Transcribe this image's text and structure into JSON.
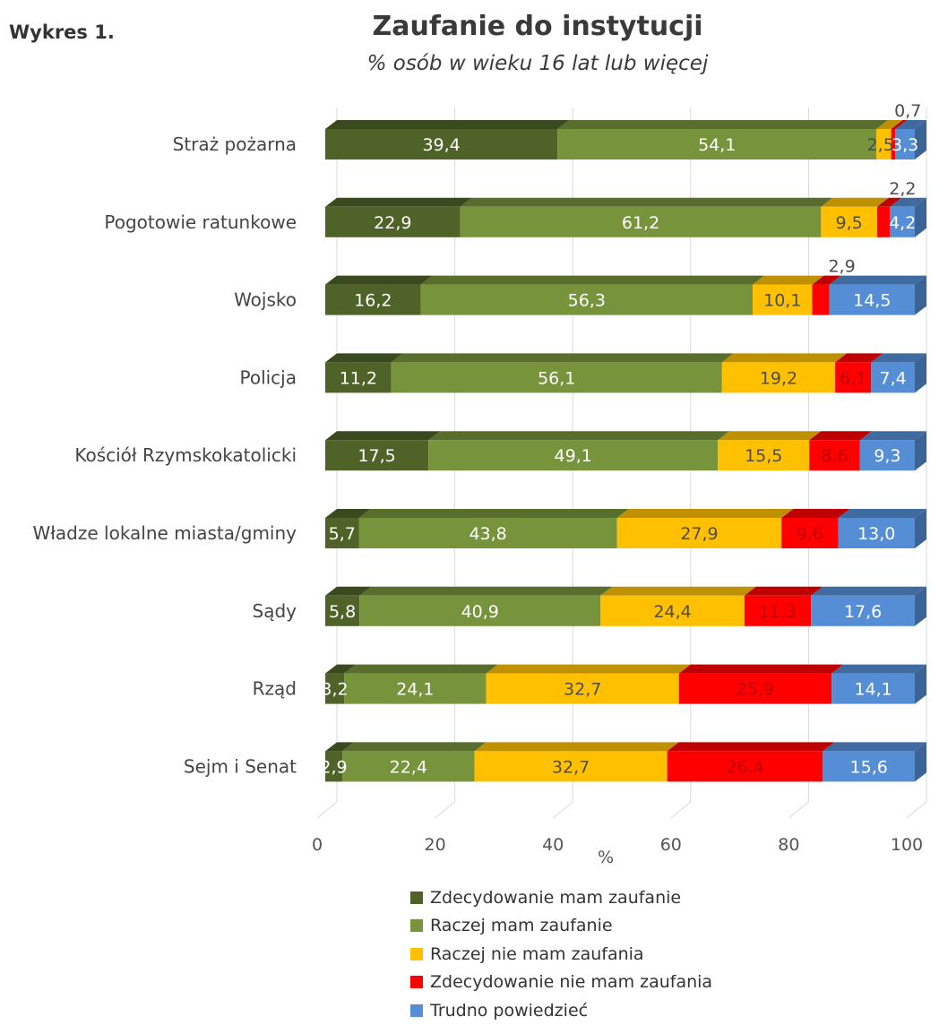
{
  "figure_label": "Wykres 1.",
  "chart_data": {
    "type": "bar",
    "orientation": "horizontal",
    "stacked": true,
    "title": "Zaufanie do instytucji",
    "subtitle": "% osób w wieku 16 lat lub więcej",
    "xlabel": "%",
    "xlim": [
      0,
      100
    ],
    "x_ticks": [
      "0",
      "20",
      "40",
      "60",
      "80",
      "100"
    ],
    "grid": true,
    "legend_position": "bottom",
    "categories": [
      "Straż pożarna",
      "Pogotowie ratunkowe",
      "Wojsko",
      "Policja",
      "Kościół Rzymskokatolicki",
      "Władze lokalne miasta/gminy",
      "Sądy",
      "Rząd",
      "Sejm i Senat"
    ],
    "series": [
      {
        "name": "Zdecydowanie mam zaufanie",
        "color": "#4f6228",
        "values": [
          39.4,
          22.9,
          16.2,
          11.2,
          17.5,
          5.7,
          5.8,
          3.2,
          2.9
        ]
      },
      {
        "name": "Raczej mam zaufanie",
        "color": "#77933c",
        "values": [
          54.1,
          61.2,
          56.3,
          56.1,
          49.1,
          43.8,
          40.9,
          24.1,
          22.4
        ]
      },
      {
        "name": "Raczej nie mam zaufania",
        "color": "#ffc000",
        "values": [
          2.5,
          9.5,
          10.1,
          19.2,
          15.5,
          27.9,
          24.4,
          32.7,
          32.7
        ]
      },
      {
        "name": "Zdecydowanie nie mam zaufania",
        "color": "#ff0000",
        "values": [
          0.7,
          2.2,
          2.9,
          6.1,
          8.6,
          9.6,
          11.3,
          25.9,
          26.4
        ]
      },
      {
        "name": "Trudno powiedzieć",
        "color": "#558ed5",
        "values": [
          3.3,
          4.2,
          14.5,
          7.4,
          9.3,
          13.0,
          17.6,
          14.1,
          15.6
        ]
      }
    ],
    "value_labels": [
      [
        "39,4",
        "54,1",
        "2,5",
        "0,7",
        "3,3"
      ],
      [
        "22,9",
        "61,2",
        "9,5",
        "2,2",
        "4,2"
      ],
      [
        "16,2",
        "56,3",
        "10,1",
        "2,9",
        "14,5"
      ],
      [
        "11,2",
        "56,1",
        "19,2",
        "6,1",
        "7,4"
      ],
      [
        "17,5",
        "49,1",
        "15,5",
        "8,6",
        "9,3"
      ],
      [
        "5,7",
        "43,8",
        "27,9",
        "9,6",
        "13,0"
      ],
      [
        "5,8",
        "40,9",
        "24,4",
        "11,3",
        "17,6"
      ],
      [
        "3,2",
        "24,1",
        "32,7",
        "25,9",
        "14,1"
      ],
      [
        "2,9",
        "22,4",
        "32,7",
        "26,4",
        "15,6"
      ]
    ]
  }
}
